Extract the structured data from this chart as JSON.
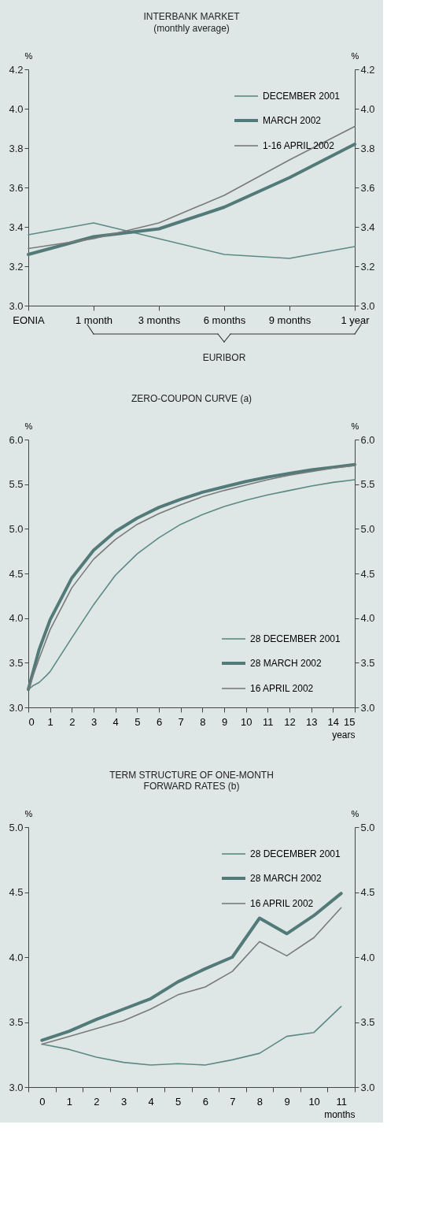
{
  "chart_data": [
    {
      "type": "line",
      "title": "INTERBANK MARKET",
      "subtitle": "(monthly average)",
      "ylabel": "%",
      "y2label": "%",
      "categories": [
        "EONIA",
        "1 month",
        "3 months",
        "6 months",
        "9 months",
        "1 year"
      ],
      "series": [
        {
          "name": "DECEMBER 2001",
          "color": "#5b8a86",
          "values": [
            3.36,
            3.42,
            3.34,
            3.26,
            3.24,
            3.3
          ]
        },
        {
          "name": "MARCH 2002",
          "color": "#527a78",
          "values": [
            3.26,
            3.35,
            3.39,
            3.5,
            3.65,
            3.82
          ]
        },
        {
          "name": "1-16 APRIL 2002",
          "color": "#7a7a7a",
          "values": [
            3.29,
            3.34,
            3.42,
            3.56,
            3.74,
            3.91
          ]
        }
      ],
      "ylim": [
        3.0,
        4.2
      ],
      "yticks": [
        {
          "value": 3,
          "label": "3.0"
        },
        3.2,
        3.4,
        3.6,
        3.8,
        {
          "value": 4,
          "label": "4.0"
        },
        4.2
      ],
      "y2lim": [
        3.0,
        4.2
      ],
      "y2ticks": [
        {
          "value": 3,
          "label": "3.0"
        },
        3.2,
        3.4,
        3.6,
        3.8,
        {
          "value": 4,
          "label": "4.0"
        },
        4.2
      ],
      "annotations": [
        "EURIBOR"
      ],
      "legend": "top right",
      "grid": false
    },
    {
      "type": "line",
      "title": "ZERO-COUPON CURVE (a)",
      "xlabel": "years",
      "ylabel": "%",
      "y2label": "%",
      "series": [
        {
          "name": "28 DECEMBER 2001",
          "color": "#5b8a86",
          "x": [
            0,
            0.2,
            0.5,
            0.8,
            1,
            2,
            3,
            4,
            5,
            6,
            7,
            8,
            9,
            10,
            11,
            12,
            13,
            14,
            15
          ],
          "values": [
            3.2,
            3.24,
            3.28,
            3.35,
            3.4,
            3.78,
            4.15,
            4.48,
            4.72,
            4.9,
            5.05,
            5.16,
            5.25,
            5.32,
            5.38,
            5.43,
            5.48,
            5.52,
            5.55
          ]
        },
        {
          "name": "28 MARCH 2002",
          "color": "#527a78",
          "x": [
            0,
            0.5,
            1,
            2,
            3,
            4,
            5,
            6,
            7,
            8,
            9,
            10,
            11,
            12,
            13,
            14,
            15
          ],
          "values": [
            3.2,
            3.65,
            3.98,
            4.45,
            4.76,
            4.97,
            5.12,
            5.24,
            5.33,
            5.41,
            5.47,
            5.53,
            5.58,
            5.62,
            5.66,
            5.69,
            5.72
          ]
        },
        {
          "name": "16 APRIL 2002",
          "color": "#7a7a7a",
          "x": [
            0,
            0.5,
            1,
            2,
            3,
            4,
            5,
            6,
            7,
            8,
            9,
            10,
            11,
            12,
            13,
            14,
            15
          ],
          "values": [
            3.2,
            3.55,
            3.87,
            4.34,
            4.66,
            4.88,
            5.05,
            5.17,
            5.27,
            5.36,
            5.43,
            5.49,
            5.55,
            5.6,
            5.64,
            5.68,
            5.71
          ]
        }
      ],
      "xlim": [
        0,
        15
      ],
      "xticks": [
        0,
        1,
        2,
        3,
        4,
        5,
        6,
        7,
        8,
        9,
        10,
        11,
        12,
        13,
        14,
        15
      ],
      "ylim": [
        3.0,
        6.0
      ],
      "yticks": [
        {
          "value": 3,
          "label": "3.0"
        },
        3.5,
        {
          "value": 4,
          "label": "4.0"
        },
        4.5,
        {
          "value": 5,
          "label": "5.0"
        },
        5.5,
        {
          "value": 6,
          "label": "6.0"
        }
      ],
      "y2lim": [
        3.0,
        6.0
      ],
      "y2ticks": [
        {
          "value": 3,
          "label": "3.0"
        },
        3.5,
        {
          "value": 4,
          "label": "4.0"
        },
        4.5,
        {
          "value": 5,
          "label": "5.0"
        },
        5.5,
        {
          "value": 6,
          "label": "6.0"
        }
      ],
      "legend": "bottom right",
      "grid": false
    },
    {
      "type": "line",
      "title": "TERM STRUCTURE OF ONE-MONTH FORWARD RATES (b)",
      "xlabel": "months",
      "ylabel": "%",
      "y2label": "%",
      "categories": [
        "0",
        "1",
        "2",
        "3",
        "4",
        "5",
        "6",
        "7",
        "8",
        "9",
        "10",
        "11"
      ],
      "series": [
        {
          "name": "28 DECEMBER 2001",
          "color": "#5b8a86",
          "values": [
            3.33,
            3.29,
            3.23,
            3.19,
            3.17,
            3.18,
            3.17,
            3.21,
            3.26,
            3.39,
            3.42,
            3.62
          ]
        },
        {
          "name": "28 MARCH 2002",
          "color": "#527a78",
          "values": [
            3.36,
            3.43,
            3.52,
            3.6,
            3.68,
            3.81,
            3.91,
            4.0,
            4.3,
            4.18,
            4.32,
            4.49
          ]
        },
        {
          "name": "16 APRIL 2002",
          "color": "#7a7a7a",
          "values": [
            3.33,
            3.39,
            3.45,
            3.51,
            3.6,
            3.71,
            3.77,
            3.89,
            4.12,
            4.01,
            4.15,
            4.38
          ]
        }
      ],
      "ylim": [
        3.0,
        5.0
      ],
      "yticks": [
        {
          "value": 3,
          "label": "3.0"
        },
        3.5,
        {
          "value": 4,
          "label": "4.0"
        },
        4.5,
        {
          "value": 5,
          "label": "5.0"
        }
      ],
      "y2lim": [
        3.0,
        5.0
      ],
      "y2ticks": [
        {
          "value": 3,
          "label": "3.0"
        },
        3.5,
        {
          "value": 4,
          "label": "4.0"
        },
        4.5,
        {
          "value": 5,
          "label": "5.0"
        }
      ],
      "legend": "top right",
      "grid": false
    }
  ]
}
